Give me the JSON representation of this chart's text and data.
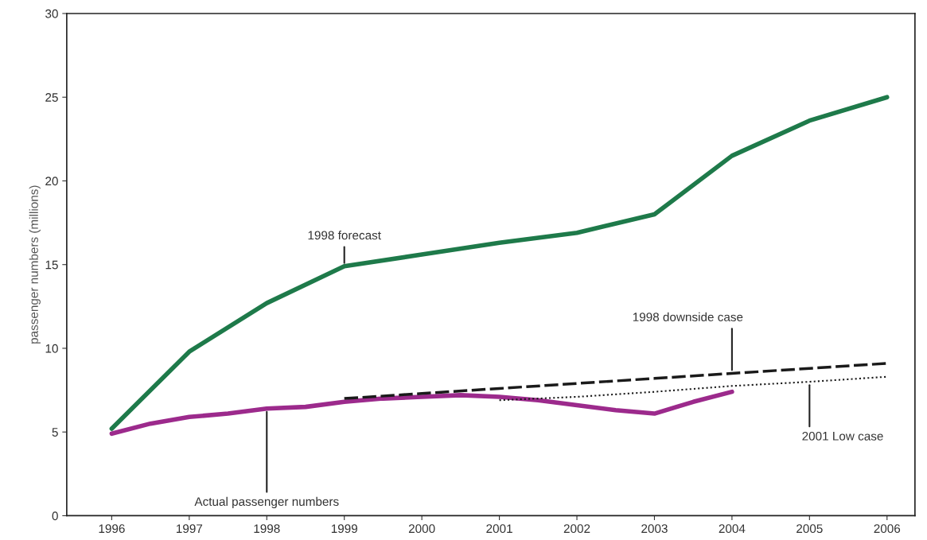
{
  "chart_data": {
    "type": "line",
    "ylabel": "passenger numbers (millions)",
    "xlim": [
      1995.42,
      2006.36
    ],
    "xticks": [
      1996,
      1997,
      1998,
      1999,
      2000,
      2001,
      2002,
      2003,
      2004,
      2005,
      2006
    ],
    "ylim": [
      0,
      30
    ],
    "yticks": [
      0,
      5,
      10,
      15,
      20,
      25,
      30
    ],
    "grid": false,
    "legend": false,
    "marker": "none",
    "series": [
      {
        "name": "1998 forecast",
        "color": "#1e7a4a",
        "line_style": "solid",
        "x": [
          1996,
          1997,
          1998,
          1999,
          2000,
          2001,
          2002,
          2003,
          2004,
          2005,
          2006
        ],
        "values": [
          5.2,
          9.8,
          12.7,
          14.9,
          15.6,
          16.3,
          16.9,
          18.0,
          21.5,
          23.6,
          25.0
        ]
      },
      {
        "name": "Actual passenger numbers",
        "color": "#9c2a8c",
        "line_style": "solid",
        "x": [
          1996,
          1996.5,
          1997,
          1997.5,
          1998,
          1998.5,
          1999,
          1999.5,
          2000,
          2000.5,
          2001,
          2001.5,
          2002,
          2002.5,
          2003,
          2003.5,
          2004
        ],
        "values": [
          4.9,
          5.5,
          5.9,
          6.1,
          6.4,
          6.5,
          6.8,
          7.0,
          7.1,
          7.2,
          7.1,
          6.9,
          6.6,
          6.3,
          6.1,
          6.8,
          7.4
        ]
      },
      {
        "name": "1998 downside case",
        "color": "#1a1a1a",
        "line_style": "dashed",
        "x": [
          1999,
          2000,
          2001,
          2002,
          2003,
          2004,
          2005,
          2006
        ],
        "values": [
          7.0,
          7.3,
          7.6,
          7.9,
          8.2,
          8.5,
          8.8,
          9.1
        ]
      },
      {
        "name": "2001 Low case",
        "color": "#1a1a1a",
        "line_style": "dotted",
        "x": [
          2001,
          2002,
          2003,
          2004,
          2005,
          2006
        ],
        "values": [
          6.9,
          7.1,
          7.4,
          7.75,
          8.0,
          8.3
        ]
      }
    ]
  }
}
